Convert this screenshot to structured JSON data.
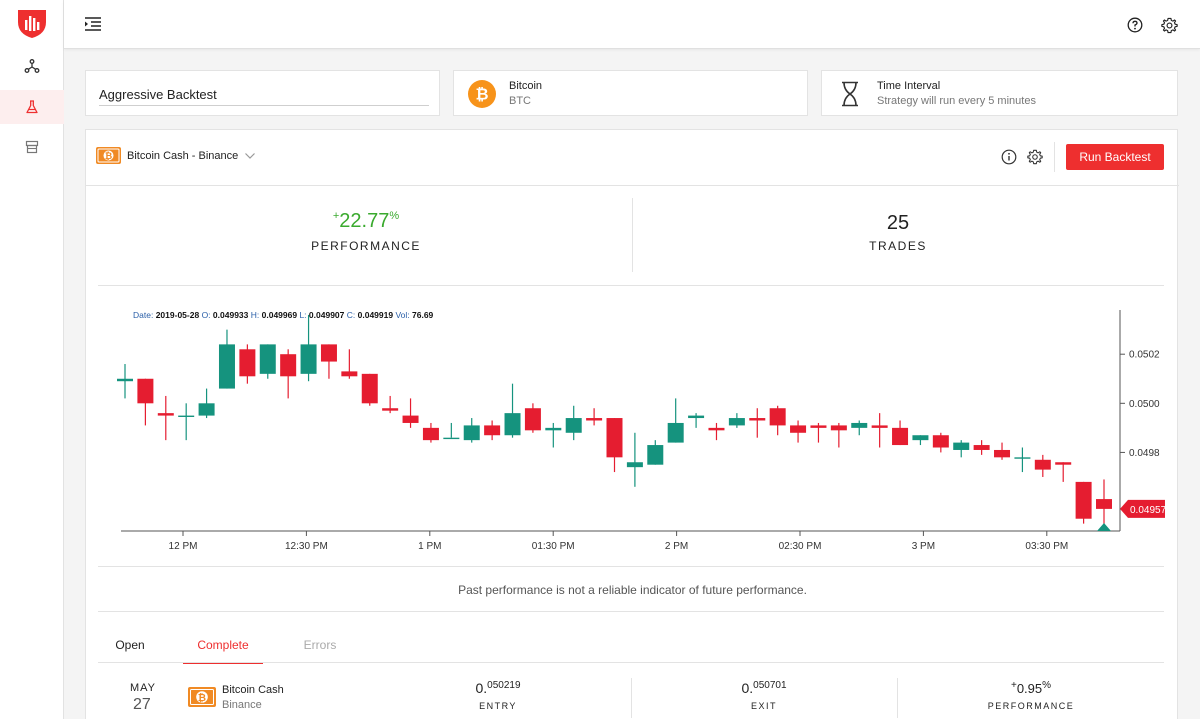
{
  "sidebar": {
    "items": [
      {
        "name": "strategies",
        "icon": "nodes-icon"
      },
      {
        "name": "backtests",
        "icon": "flask-icon",
        "active": true
      },
      {
        "name": "marketplace",
        "icon": "store-icon"
      }
    ]
  },
  "header": {
    "title_value": "Aggressive Backtest",
    "coin": {
      "name": "Bitcoin",
      "symbol": "BTC"
    },
    "interval": {
      "title": "Time Interval",
      "subtitle": "Strategy will run every 5 minutes"
    }
  },
  "market": {
    "label": "Bitcoin Cash - Binance"
  },
  "actions": {
    "run_label": "Run Backtest"
  },
  "stats": {
    "performance": {
      "sign": "+",
      "value": "22.77",
      "unit": "%",
      "label": "PERFORMANCE"
    },
    "trades": {
      "value": "25",
      "label": "TRADES"
    }
  },
  "ohlc": {
    "date_label": "Date:",
    "date": "2019-05-28",
    "o_label": "O:",
    "o": "0.049933",
    "h_label": "H:",
    "h": "0.049969",
    "l_label": "L:",
    "l": "0.049907",
    "c_label": "C:",
    "c": "0.049919",
    "vol_label": "Vol:",
    "vol": "76.69"
  },
  "chart_data": {
    "type": "candlestick",
    "x_ticks": [
      "12 PM",
      "12:30 PM",
      "1 PM",
      "01:30 PM",
      "2 PM",
      "02:30 PM",
      "3 PM",
      "03:30 PM"
    ],
    "y_ticks": [
      "0.0502",
      "0.0500",
      "0.0498"
    ],
    "ylim": [
      0.04948,
      0.05038
    ],
    "current_price": "0.04957",
    "up_color": "#15937e",
    "down_color": "#e51d30",
    "candles": [
      {
        "o": 0.05009,
        "h": 0.05016,
        "l": 0.05002,
        "c": 0.0501
      },
      {
        "o": 0.0501,
        "h": 0.0501,
        "l": 0.04991,
        "c": 0.05
      },
      {
        "o": 0.04996,
        "h": 0.05003,
        "l": 0.04985,
        "c": 0.04995
      },
      {
        "o": 0.04995,
        "h": 0.05,
        "l": 0.04985,
        "c": 0.04995
      },
      {
        "o": 0.04995,
        "h": 0.05006,
        "l": 0.04994,
        "c": 0.05
      },
      {
        "o": 0.05006,
        "h": 0.0503,
        "l": 0.05006,
        "c": 0.05024
      },
      {
        "o": 0.05022,
        "h": 0.05024,
        "l": 0.05008,
        "c": 0.05011
      },
      {
        "o": 0.05012,
        "h": 0.05024,
        "l": 0.0501,
        "c": 0.05024
      },
      {
        "o": 0.0502,
        "h": 0.05022,
        "l": 0.05002,
        "c": 0.05011
      },
      {
        "o": 0.05012,
        "h": 0.05036,
        "l": 0.05009,
        "c": 0.05024
      },
      {
        "o": 0.05024,
        "h": 0.05024,
        "l": 0.0501,
        "c": 0.05017
      },
      {
        "o": 0.05013,
        "h": 0.05022,
        "l": 0.0501,
        "c": 0.05011
      },
      {
        "o": 0.05012,
        "h": 0.05012,
        "l": 0.04999,
        "c": 0.05
      },
      {
        "o": 0.04998,
        "h": 0.05003,
        "l": 0.04996,
        "c": 0.04997
      },
      {
        "o": 0.04995,
        "h": 0.05002,
        "l": 0.0499,
        "c": 0.04992
      },
      {
        "o": 0.0499,
        "h": 0.04992,
        "l": 0.04984,
        "c": 0.04985
      },
      {
        "o": 0.04986,
        "h": 0.04992,
        "l": 0.04986,
        "c": 0.04986
      },
      {
        "o": 0.04985,
        "h": 0.04994,
        "l": 0.04984,
        "c": 0.04991
      },
      {
        "o": 0.04991,
        "h": 0.04993,
        "l": 0.04985,
        "c": 0.04987
      },
      {
        "o": 0.04987,
        "h": 0.05008,
        "l": 0.04986,
        "c": 0.04996
      },
      {
        "o": 0.04998,
        "h": 0.05,
        "l": 0.04988,
        "c": 0.04989
      },
      {
        "o": 0.04989,
        "h": 0.04992,
        "l": 0.04982,
        "c": 0.0499
      },
      {
        "o": 0.04988,
        "h": 0.04999,
        "l": 0.04985,
        "c": 0.04994
      },
      {
        "o": 0.04994,
        "h": 0.04998,
        "l": 0.04991,
        "c": 0.04993
      },
      {
        "o": 0.04994,
        "h": 0.04994,
        "l": 0.04972,
        "c": 0.04978
      },
      {
        "o": 0.04974,
        "h": 0.04988,
        "l": 0.04966,
        "c": 0.04976
      },
      {
        "o": 0.04975,
        "h": 0.04985,
        "l": 0.04975,
        "c": 0.04983
      },
      {
        "o": 0.04984,
        "h": 0.05002,
        "l": 0.04984,
        "c": 0.04992
      },
      {
        "o": 0.04994,
        "h": 0.04996,
        "l": 0.0499,
        "c": 0.04995
      },
      {
        "o": 0.0499,
        "h": 0.04992,
        "l": 0.04985,
        "c": 0.04989
      },
      {
        "o": 0.04991,
        "h": 0.04996,
        "l": 0.0499,
        "c": 0.04994
      },
      {
        "o": 0.04994,
        "h": 0.04998,
        "l": 0.04986,
        "c": 0.04993
      },
      {
        "o": 0.04998,
        "h": 0.04999,
        "l": 0.04987,
        "c": 0.04991
      },
      {
        "o": 0.04991,
        "h": 0.04993,
        "l": 0.04984,
        "c": 0.04988
      },
      {
        "o": 0.04991,
        "h": 0.04992,
        "l": 0.04984,
        "c": 0.0499
      },
      {
        "o": 0.04991,
        "h": 0.04992,
        "l": 0.04982,
        "c": 0.04989
      },
      {
        "o": 0.0499,
        "h": 0.04993,
        "l": 0.04987,
        "c": 0.04992
      },
      {
        "o": 0.04991,
        "h": 0.04996,
        "l": 0.04982,
        "c": 0.0499
      },
      {
        "o": 0.0499,
        "h": 0.04993,
        "l": 0.04983,
        "c": 0.04983
      },
      {
        "o": 0.04985,
        "h": 0.04987,
        "l": 0.04983,
        "c": 0.04987
      },
      {
        "o": 0.04987,
        "h": 0.04988,
        "l": 0.0498,
        "c": 0.04982
      },
      {
        "o": 0.04981,
        "h": 0.04985,
        "l": 0.04978,
        "c": 0.04984
      },
      {
        "o": 0.04983,
        "h": 0.04985,
        "l": 0.04979,
        "c": 0.04981
      },
      {
        "o": 0.04981,
        "h": 0.04984,
        "l": 0.04977,
        "c": 0.04978
      },
      {
        "o": 0.04978,
        "h": 0.04982,
        "l": 0.04972,
        "c": 0.04978
      },
      {
        "o": 0.04977,
        "h": 0.04979,
        "l": 0.0497,
        "c": 0.04973
      },
      {
        "o": 0.04976,
        "h": 0.04976,
        "l": 0.04968,
        "c": 0.04975
      },
      {
        "o": 0.04968,
        "h": 0.04968,
        "l": 0.04951,
        "c": 0.04953
      },
      {
        "o": 0.04961,
        "h": 0.04969,
        "l": 0.0495,
        "c": 0.04957
      }
    ]
  },
  "disclaimer": "Past performance is not a reliable indicator of future performance.",
  "tabs": [
    {
      "label": "Open",
      "state": "normal"
    },
    {
      "label": "Complete",
      "state": "active"
    },
    {
      "label": "Errors",
      "state": "disabled"
    }
  ],
  "trade": {
    "month": "MAY",
    "day": "27",
    "coin": "Bitcoin Cash",
    "exchange": "Binance",
    "entry_int": "0.",
    "entry_frac": "050219",
    "entry_label": "ENTRY",
    "exit_int": "0.",
    "exit_frac": "050701",
    "exit_label": "EXIT",
    "perf_sign": "+",
    "perf_value": "0.95",
    "perf_unit": "%",
    "perf_label": "PERFORMANCE"
  },
  "colors": {
    "accent": "#ee2f2f",
    "green": "#3aaa2e",
    "bitcoin": "#f7931a",
    "bch": "#f08a24"
  }
}
